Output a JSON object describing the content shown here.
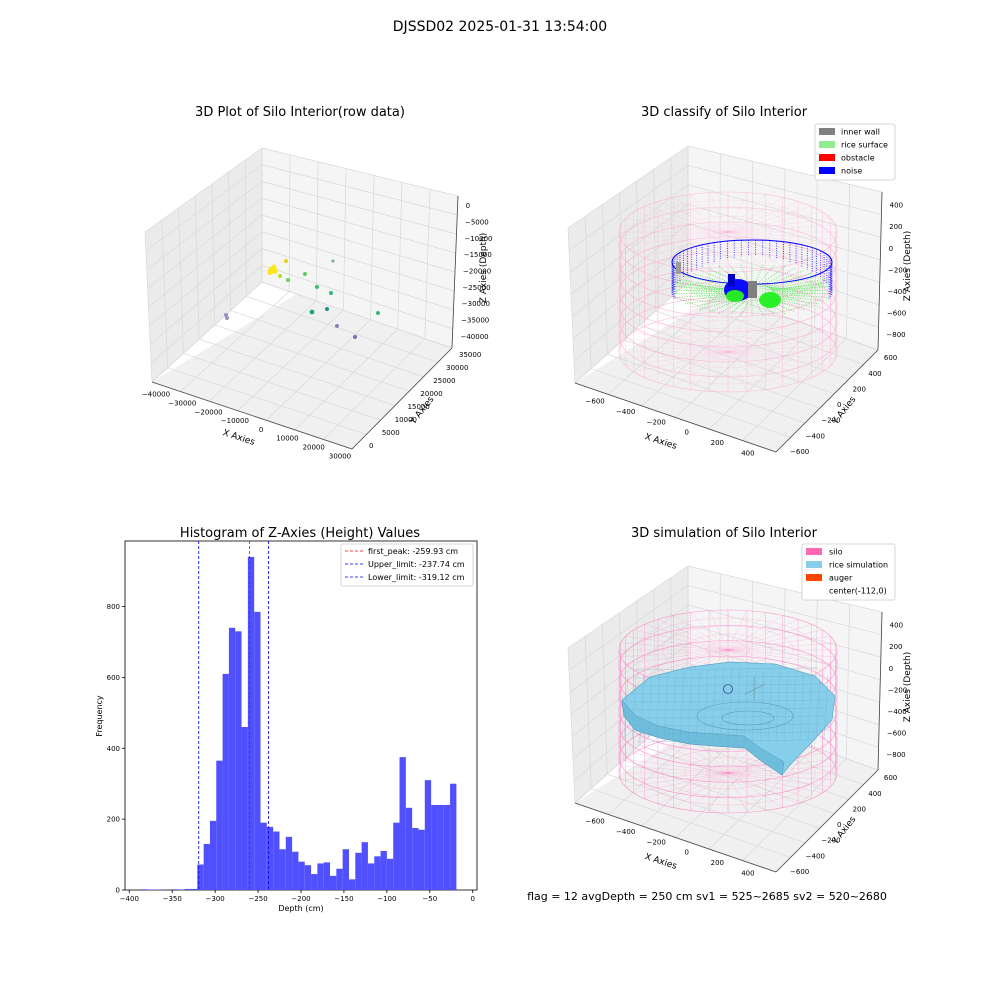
{
  "suptitle": "DJSSD02 2025-01-31 13:54:00",
  "footer": "flag = 12   avgDepth = 250 cm  sv1 = 525~2685  sv2 = 520~2680",
  "colors": {
    "grid": "#e6e6e6",
    "pane": "#f2f2f2",
    "bars": "#5050ff",
    "silo_pink": "#ff69b4",
    "rice_blue": "#87ceeb",
    "auger": "#ff4500",
    "inner_wall": "#808080",
    "rice_surface": "#90ee90",
    "obstacle": "#ff0000",
    "noise": "#0000ff"
  },
  "chart_data": [
    {
      "type": "scatter",
      "title": "3D Plot of Silo Interior(row data)",
      "xlabel": "X Axies",
      "ylabel": "Y Axies",
      "zlabel": "Z Axies (Depth)",
      "xticks": [
        "−40000",
        "−30000",
        "−20000",
        "−10000",
        "0",
        "10000",
        "20000",
        "30000"
      ],
      "yticks": [
        "0",
        "5000",
        "10000",
        "15000",
        "20000",
        "25000",
        "30000",
        "35000"
      ],
      "zticks": [
        "0",
        "−5000",
        "−10000",
        "−15000",
        "−20000",
        "−25000",
        "−30000",
        "−35000",
        "−40000"
      ]
    },
    {
      "type": "scatter",
      "title": "3D classify of Silo Interior",
      "xlabel": "X Axies",
      "ylabel": "Y Axies",
      "zlabel": "Z Axies (Depth)",
      "xticks": [
        "−600",
        "−400",
        "−200",
        "0",
        "200",
        "400"
      ],
      "yticks": [
        "−600",
        "−400",
        "−200",
        "0",
        "200",
        "400",
        "600"
      ],
      "zticks": [
        "400",
        "200",
        "0",
        "−200",
        "−400",
        "−600",
        "−800"
      ],
      "legend": [
        "inner wall",
        "rice surface",
        "obstacle",
        "noise"
      ],
      "legend_position": "top-right"
    },
    {
      "type": "bar",
      "title": "Histogram of Z-Axies (Height) Values",
      "xlabel": "Depth (cm)",
      "ylabel": "Frequency",
      "xlim": [
        -405,
        5
      ],
      "ylim": [
        0,
        985
      ],
      "xticks": [
        -400,
        -350,
        -300,
        -250,
        -200,
        -150,
        -100,
        -50,
        0
      ],
      "yticks": [
        0,
        200,
        400,
        600,
        800
      ],
      "bin_start": -387,
      "bin_width": 7.36,
      "values": [
        2,
        1,
        1,
        1,
        0,
        2,
        1,
        3,
        3,
        72,
        130,
        195,
        365,
        610,
        740,
        730,
        460,
        940,
        785,
        190,
        178,
        165,
        115,
        150,
        108,
        80,
        70,
        45,
        75,
        78,
        40,
        60,
        115,
        30,
        105,
        135,
        75,
        95,
        110,
        88,
        190,
        375,
        232,
        175,
        170,
        310,
        240,
        240,
        240,
        300
      ],
      "lines": [
        {
          "label": "first_peak: -259.93 cm",
          "x": -259.93,
          "color": "#ff0000"
        },
        {
          "label": "Upper_limit: -237.74 cm",
          "x": -237.74,
          "color": "#0000ff"
        },
        {
          "label": "Lower_limit: -319.12 cm",
          "x": -319.12,
          "color": "#0000ff"
        }
      ],
      "legend_position": "top-right",
      "grid": false
    },
    {
      "type": "scatter",
      "title": "3D simulation of Silo Interior",
      "xlabel": "X Axies",
      "ylabel": "Y Axies",
      "zlabel": "Z Axies (Depth)",
      "xticks": [
        "−600",
        "−400",
        "−200",
        "0",
        "200",
        "400"
      ],
      "yticks": [
        "−600",
        "−400",
        "−200",
        "0",
        "200",
        "400",
        "600"
      ],
      "zticks": [
        "400",
        "200",
        "0",
        "−200",
        "−400",
        "−600",
        "−800"
      ],
      "legend": [
        "silo",
        "rice simulation",
        "auger",
        "center(-112,0)"
      ],
      "legend_position": "top-right"
    }
  ]
}
